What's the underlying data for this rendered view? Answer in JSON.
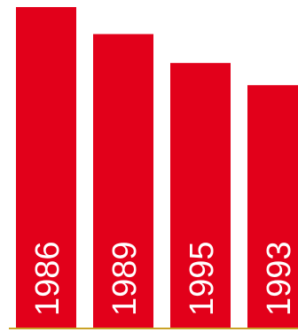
{
  "chart_data": {
    "type": "bar",
    "categories": [
      "1986",
      "1989",
      "1995",
      "1993"
    ],
    "values": [
      100,
      91.6,
      82.6,
      75.7
    ],
    "ylim": [
      0,
      100
    ],
    "bar_color": "#e2001a",
    "baseline_color": "#c9a227",
    "label_color": "#ffffff",
    "grid": false,
    "legend": "none"
  }
}
